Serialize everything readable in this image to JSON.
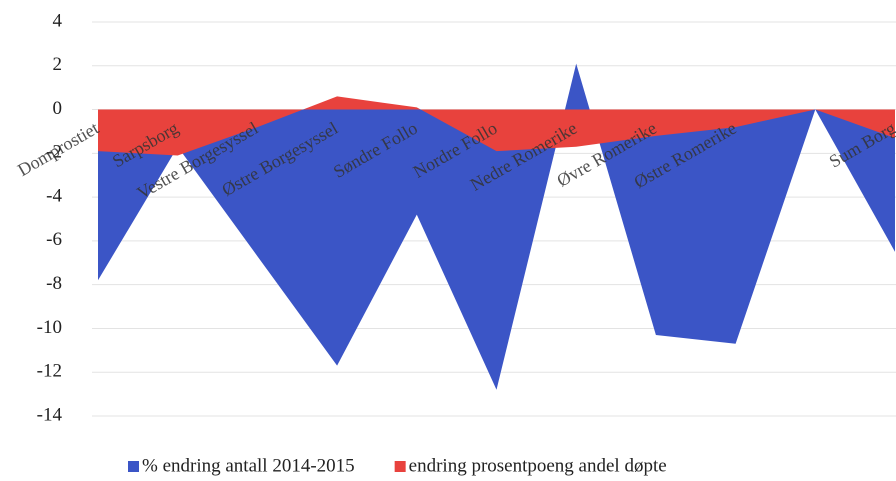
{
  "chart_data": {
    "type": "area",
    "categories": [
      "Domprostiet",
      "Sarpsborg",
      "Vestre Borgesyssel",
      "Østre Borgesyssel",
      "Søndre Follo",
      "Nordre Follo",
      "Nedre Romerike",
      "Øvre Romerike",
      "Østre Romerike",
      null,
      "Sum Borg"
    ],
    "series": [
      {
        "name": "% endring antall 2014-2015",
        "color": "#3b55c6",
        "values": [
          -7.8,
          -1.7,
          -6.7,
          -11.7,
          -4.8,
          -12.8,
          2.1,
          -10.3,
          -10.7,
          0,
          -6.5
        ]
      },
      {
        "name": "endring prosentpoeng andel døpte",
        "color": "#e8423d",
        "values": [
          -1.9,
          -2.1,
          -0.8,
          0.6,
          0.1,
          -1.9,
          -1.7,
          -1.2,
          -0.8,
          0,
          -1.3
        ]
      }
    ],
    "ylim": [
      -14,
      4
    ],
    "yticks": [
      -14,
      -12,
      -10,
      -8,
      -6,
      -4,
      -2,
      0,
      2,
      4
    ],
    "grid": true,
    "legend": "bottom"
  }
}
